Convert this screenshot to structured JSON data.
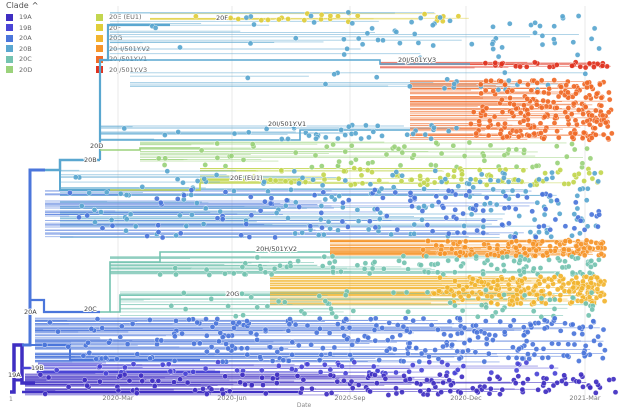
{
  "legend": {
    "title": "Clade",
    "toggle_icon": "chevron-up-icon",
    "items": [
      {
        "label": "19A",
        "color": "#3f2ec2"
      },
      {
        "label": "19B",
        "color": "#4a45d6"
      },
      {
        "label": "20A",
        "color": "#4b76db"
      },
      {
        "label": "20B",
        "color": "#5aa7d0"
      },
      {
        "label": "20C",
        "color": "#74c3b0"
      },
      {
        "label": "20D",
        "color": "#9bd27b"
      },
      {
        "label": "20E (EU1)",
        "color": "#c3d64f"
      },
      {
        "label": "20F",
        "color": "#e0ce3a"
      },
      {
        "label": "20G",
        "color": "#f2b52f"
      },
      {
        "label": "20H/501Y.V2",
        "color": "#f6952a"
      },
      {
        "label": "20I/501Y.V1",
        "color": "#f06a27"
      },
      {
        "label": "20J/501Y.V3",
        "color": "#e0321f"
      }
    ]
  },
  "axis": {
    "label": "Date",
    "ticks": [
      "2020-Mar",
      "2020-Jun",
      "2020-Sep",
      "2020-Dec",
      "2021-Mar"
    ]
  },
  "branch_labels": [
    "20F",
    "20J/501Y.V3",
    "20I/501Y.V1",
    "20D",
    "20B",
    "20E (EU1)",
    "20H/501Y.V2",
    "20C",
    "20G",
    "20A",
    "19B",
    "19A"
  ],
  "tip_counts": {
    "20F": 45,
    "20J": 30,
    "20I": 260,
    "20D": 80,
    "20E": 200,
    "20B": 160,
    "20H": 150,
    "20C": 160,
    "20G": 220,
    "20A": 340,
    "19B": 70,
    "19A": 150
  }
}
